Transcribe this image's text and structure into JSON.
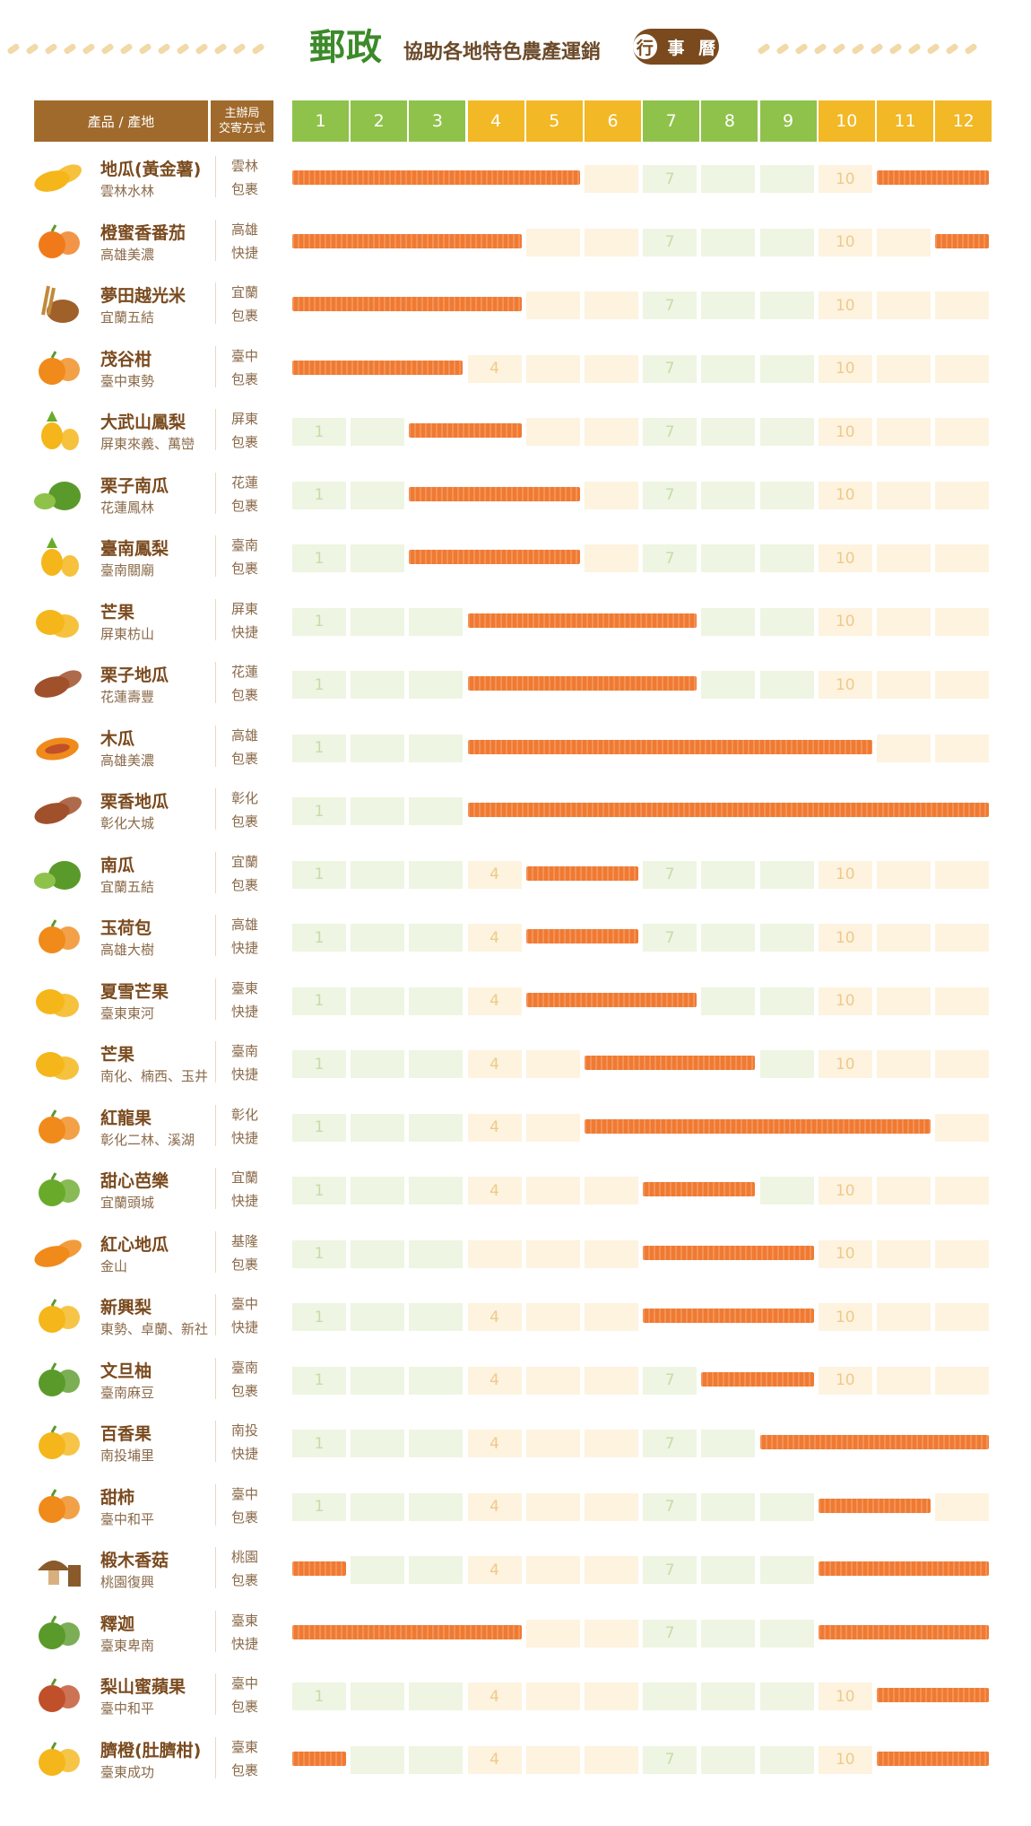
{
  "header": {
    "title_main": "郵政",
    "title_sub": "協助各地特色農產運銷",
    "pill": [
      "行",
      "事",
      "曆"
    ]
  },
  "columns": {
    "product": "產品 / 產地",
    "method_line1": "主辦局",
    "method_line2": "交寄方式",
    "months": [
      "1",
      "2",
      "3",
      "4",
      "5",
      "6",
      "7",
      "8",
      "9",
      "10",
      "11",
      "12"
    ]
  },
  "colors": {
    "month_green": "#8fc24a",
    "month_yellow": "#f2b825",
    "bar": "#f07a32",
    "cell_green": "#eef5e2",
    "cell_yellow": "#fdf3df",
    "title_green": "#3c8a2a",
    "brown": "#a06a2c"
  },
  "chart_data": {
    "type": "table",
    "month_colors": [
      "green",
      "green",
      "green",
      "yellow",
      "yellow",
      "yellow",
      "green",
      "green",
      "green",
      "yellow",
      "yellow",
      "yellow"
    ],
    "rows": [
      {
        "name": "地瓜(黃金薯)",
        "origin": "雲林水林",
        "city": "雲林",
        "method": "包裹",
        "icon": "sweet-potato-icon",
        "color": "#f4b61a",
        "spans": [
          [
            1,
            5
          ],
          [
            11,
            12
          ]
        ],
        "labels": [
          "7",
          "10"
        ]
      },
      {
        "name": "橙蜜香番茄",
        "origin": "高雄美濃",
        "city": "高雄",
        "method": "快捷",
        "icon": "tomato-icon",
        "color": "#f07a1a",
        "spans": [
          [
            1,
            4
          ],
          [
            12,
            12
          ]
        ],
        "labels": [
          "7",
          "10"
        ]
      },
      {
        "name": "夢田越光米",
        "origin": "宜蘭五結",
        "city": "宜蘭",
        "method": "包裹",
        "icon": "rice-icon",
        "color": "#a0602a",
        "spans": [
          [
            1,
            4
          ]
        ],
        "labels": [
          "7",
          "10"
        ]
      },
      {
        "name": "茂谷柑",
        "origin": "臺中東勢",
        "city": "臺中",
        "method": "包裹",
        "icon": "orange-icon",
        "color": "#f08a1a",
        "spans": [
          [
            1,
            3
          ]
        ],
        "labels": [
          "4",
          "7",
          "10"
        ]
      },
      {
        "name": "大武山鳳梨",
        "origin": "屏東來義、萬巒",
        "city": "屏東",
        "method": "包裹",
        "icon": "pineapple-icon",
        "color": "#f4b61a",
        "spans": [
          [
            3,
            4
          ]
        ],
        "labels": [
          "1",
          "7",
          "10"
        ]
      },
      {
        "name": "栗子南瓜",
        "origin": "花蓮鳳林",
        "city": "花蓮",
        "method": "包裹",
        "icon": "pumpkin-icon",
        "color": "#5a9a2a",
        "spans": [
          [
            3,
            5
          ]
        ],
        "labels": [
          "1",
          "7",
          "10"
        ]
      },
      {
        "name": "臺南鳳梨",
        "origin": "臺南關廟",
        "city": "臺南",
        "method": "包裹",
        "icon": "pineapple-icon",
        "color": "#f4b61a",
        "spans": [
          [
            3,
            5
          ]
        ],
        "labels": [
          "1",
          "7",
          "10"
        ]
      },
      {
        "name": "芒果",
        "origin": "屏東枋山",
        "city": "屏東",
        "method": "快捷",
        "icon": "mango-icon",
        "color": "#f4b61a",
        "spans": [
          [
            4,
            7
          ]
        ],
        "labels": [
          "1",
          "10"
        ]
      },
      {
        "name": "栗子地瓜",
        "origin": "花蓮壽豐",
        "city": "花蓮",
        "method": "包裹",
        "icon": "sweet-potato-icon",
        "color": "#a0502a",
        "spans": [
          [
            4,
            7
          ]
        ],
        "labels": [
          "1",
          "10"
        ]
      },
      {
        "name": "木瓜",
        "origin": "高雄美濃",
        "city": "高雄",
        "method": "包裹",
        "icon": "papaya-icon",
        "color": "#f08a1a",
        "spans": [
          [
            4,
            10
          ]
        ],
        "labels": [
          "1"
        ]
      },
      {
        "name": "栗香地瓜",
        "origin": "彰化大城",
        "city": "彰化",
        "method": "包裹",
        "icon": "sweet-potato-icon",
        "color": "#a0502a",
        "spans": [
          [
            4,
            12
          ]
        ],
        "labels": [
          "1"
        ]
      },
      {
        "name": "南瓜",
        "origin": "宜蘭五結",
        "city": "宜蘭",
        "method": "包裹",
        "icon": "pumpkin-icon",
        "color": "#5a9a2a",
        "spans": [
          [
            5,
            6
          ]
        ],
        "labels": [
          "1",
          "4",
          "7",
          "10"
        ]
      },
      {
        "name": "玉荷包",
        "origin": "高雄大樹",
        "city": "高雄",
        "method": "快捷",
        "icon": "lychee-icon",
        "color": "#f08a1a",
        "spans": [
          [
            5,
            6
          ]
        ],
        "labels": [
          "1",
          "4",
          "7",
          "10"
        ]
      },
      {
        "name": "夏雪芒果",
        "origin": "臺東東河",
        "city": "臺東",
        "method": "快捷",
        "icon": "mango-icon",
        "color": "#f4b61a",
        "spans": [
          [
            5,
            7
          ]
        ],
        "labels": [
          "1",
          "4",
          "10"
        ]
      },
      {
        "name": "芒果",
        "origin": "南化、楠西、玉井",
        "city": "臺南",
        "method": "快捷",
        "icon": "mango-icon",
        "color": "#f4b61a",
        "spans": [
          [
            6,
            8
          ]
        ],
        "labels": [
          "1",
          "4",
          "10"
        ]
      },
      {
        "name": "紅龍果",
        "origin": "彰化二林、溪湖",
        "city": "彰化",
        "method": "快捷",
        "icon": "dragon-fruit-icon",
        "color": "#f08a1a",
        "spans": [
          [
            6,
            11
          ]
        ],
        "labels": [
          "1",
          "4"
        ]
      },
      {
        "name": "甜心芭樂",
        "origin": "宜蘭頭城",
        "city": "宜蘭",
        "method": "快捷",
        "icon": "guava-icon",
        "color": "#6aaa2a",
        "spans": [
          [
            7,
            8
          ]
        ],
        "labels": [
          "1",
          "4",
          "10"
        ]
      },
      {
        "name": "紅心地瓜",
        "origin": "金山",
        "city": "基隆",
        "method": "包裹",
        "icon": "sweet-potato-icon",
        "color": "#f08a1a",
        "spans": [
          [
            7,
            9
          ]
        ],
        "labels": [
          "1",
          "10"
        ]
      },
      {
        "name": "新興梨",
        "origin": "東勢、卓蘭、新社",
        "city": "臺中",
        "method": "快捷",
        "icon": "pear-icon",
        "color": "#f4b61a",
        "spans": [
          [
            7,
            9
          ]
        ],
        "labels": [
          "1",
          "4",
          "10"
        ]
      },
      {
        "name": "文旦柚",
        "origin": "臺南麻豆",
        "city": "臺南",
        "method": "包裹",
        "icon": "pomelo-icon",
        "color": "#5a9a2a",
        "spans": [
          [
            8,
            9
          ]
        ],
        "labels": [
          "1",
          "4",
          "7",
          "10"
        ]
      },
      {
        "name": "百香果",
        "origin": "南投埔里",
        "city": "南投",
        "method": "快捷",
        "icon": "passion-fruit-icon",
        "color": "#f4b61a",
        "spans": [
          [
            9,
            12
          ]
        ],
        "labels": [
          "1",
          "4",
          "7"
        ]
      },
      {
        "name": "甜柿",
        "origin": "臺中和平",
        "city": "臺中",
        "method": "包裹",
        "icon": "persimmon-icon",
        "color": "#f08a1a",
        "spans": [
          [
            10,
            11
          ]
        ],
        "labels": [
          "1",
          "4",
          "7"
        ]
      },
      {
        "name": "椴木香菇",
        "origin": "桃園復興",
        "city": "桃園",
        "method": "包裹",
        "icon": "mushroom-icon",
        "color": "#8a5a2a",
        "spans": [
          [
            1,
            1
          ],
          [
            10,
            12
          ]
        ],
        "labels": [
          "4",
          "7"
        ]
      },
      {
        "name": "釋迦",
        "origin": "臺東卑南",
        "city": "臺東",
        "method": "快捷",
        "icon": "custard-apple-icon",
        "color": "#5a9a2a",
        "spans": [
          [
            1,
            4
          ],
          [
            10,
            12
          ]
        ],
        "labels": [
          "7"
        ]
      },
      {
        "name": "梨山蜜蘋果",
        "origin": "臺中和平",
        "city": "臺中",
        "method": "包裹",
        "icon": "apple-icon",
        "color": "#c0502a",
        "spans": [
          [
            11,
            12
          ]
        ],
        "labels": [
          "1",
          "4",
          "10"
        ]
      },
      {
        "name": "臍橙(肚臍柑)",
        "origin": "臺東成功",
        "city": "臺東",
        "method": "包裹",
        "icon": "navel-orange-icon",
        "color": "#f4b61a",
        "spans": [
          [
            1,
            1
          ],
          [
            11,
            12
          ]
        ],
        "labels": [
          "4",
          "7",
          "10"
        ]
      }
    ]
  }
}
